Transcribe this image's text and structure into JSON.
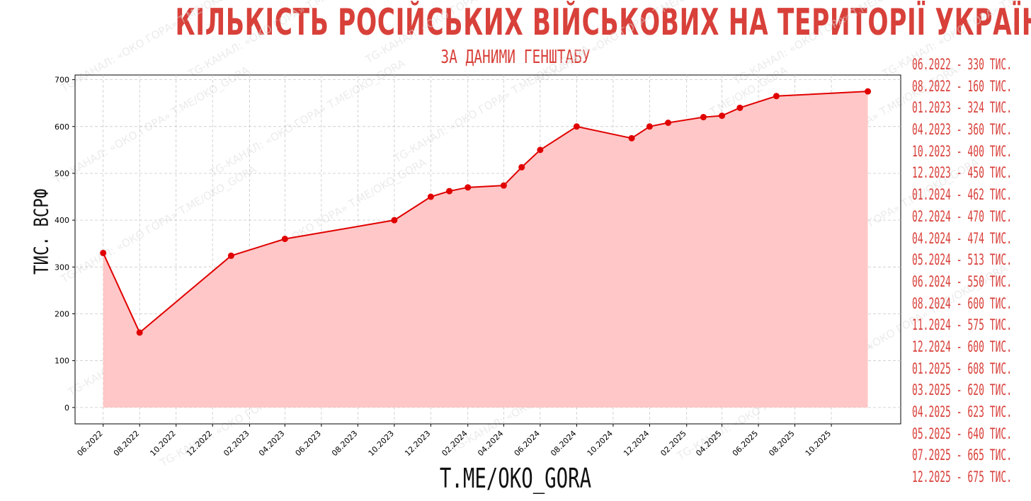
{
  "title": "КІЛЬКІСТЬ РОСІЙСЬКИХ ВІЙСЬКОВИХ НА ТЕРИТОРІЇ УКРАЇНИ:",
  "subtitle": "ЗА ДАНИМИ ГЕНШТАБУ",
  "footer": "T.ME/OKO_GORA",
  "watermark": "TG-КАНАЛ: «ОКО ГОРА» T.ME/OKO_GORA",
  "side_list": [
    "06.2022 - 330 ТИС.",
    "08.2022 - 160 ТИС.",
    "01.2023 - 324 ТИС.",
    "04.2023 - 360 ТИС.",
    "10.2023 - 400 ТИС.",
    "12.2023 - 450 ТИС.",
    "01.2024 - 462 ТИС.",
    "02.2024 - 470 ТИС.",
    "04.2024 - 474 ТИС.",
    "05.2024 - 513 ТИС.",
    "06.2024 - 550 ТИС.",
    "08.2024 - 600 ТИС.",
    "11.2024 - 575 ТИС.",
    "12.2024 - 600 ТИС.",
    "01.2025 - 608 ТИС.",
    "03.2025 - 620 ТИС.",
    "04.2025 - 623 ТИС.",
    "05.2025 - 640 ТИС.",
    "07.2025 - 665 ТИС.",
    "12.2025 - 675 ТИС."
  ],
  "chart_data": {
    "type": "area",
    "ylabel": "ТИС. ВСРФ",
    "xlabel": "",
    "ylim": [
      -35,
      710
    ],
    "xlim": [
      "2022-04-15",
      "2026-01-25"
    ],
    "yticks": [
      0,
      100,
      200,
      300,
      400,
      500,
      600,
      700
    ],
    "xticks": [
      "06.2022",
      "08.2022",
      "10.2022",
      "12.2022",
      "02.2023",
      "04.2023",
      "06.2023",
      "08.2023",
      "10.2023",
      "12.2023",
      "02.2024",
      "04.2024",
      "06.2024",
      "08.2024",
      "10.2024",
      "12.2024",
      "02.2025",
      "04.2025",
      "06.2025",
      "08.2025",
      "10.2025"
    ],
    "grid": true,
    "line_color": "#e00000",
    "fill_color": "#ffc7c7",
    "points": [
      {
        "x": "2022-06-01",
        "y": 330
      },
      {
        "x": "2022-08-01",
        "y": 160
      },
      {
        "x": "2023-01-01",
        "y": 324
      },
      {
        "x": "2023-04-01",
        "y": 360
      },
      {
        "x": "2023-10-01",
        "y": 400
      },
      {
        "x": "2023-12-01",
        "y": 450
      },
      {
        "x": "2024-01-01",
        "y": 462
      },
      {
        "x": "2024-02-01",
        "y": 470
      },
      {
        "x": "2024-04-01",
        "y": 474
      },
      {
        "x": "2024-05-01",
        "y": 513
      },
      {
        "x": "2024-06-01",
        "y": 550
      },
      {
        "x": "2024-08-01",
        "y": 600
      },
      {
        "x": "2024-11-01",
        "y": 575
      },
      {
        "x": "2024-12-01",
        "y": 600
      },
      {
        "x": "2025-01-01",
        "y": 608
      },
      {
        "x": "2025-03-01",
        "y": 620
      },
      {
        "x": "2025-04-01",
        "y": 623
      },
      {
        "x": "2025-05-01",
        "y": 640
      },
      {
        "x": "2025-07-01",
        "y": 665
      },
      {
        "x": "2025-12-01",
        "y": 675
      }
    ]
  }
}
